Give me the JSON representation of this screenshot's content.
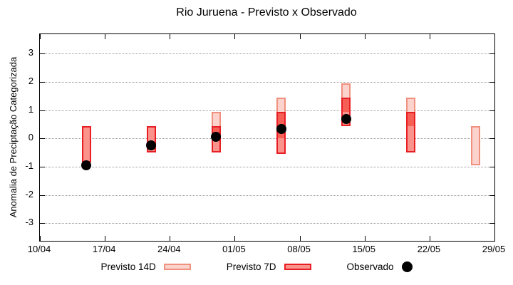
{
  "title": "Rio Juruena - Previsto x Observado",
  "y_axis": {
    "label": "Anomalia de Preciptação Categorizada",
    "ticks": [
      "3",
      "2",
      "1",
      "0",
      "-1",
      "-2",
      "-3"
    ],
    "tick_values": [
      3,
      2,
      1,
      0,
      -1,
      -2,
      -3
    ]
  },
  "x_axis": {
    "ticks": [
      "10/04",
      "17/04",
      "24/04",
      "01/05",
      "08/05",
      "15/05",
      "22/05",
      "29/05"
    ],
    "tick_days": [
      0,
      7,
      14,
      21,
      28,
      35,
      42,
      49
    ]
  },
  "legend": {
    "items": [
      {
        "label": "Previsto 14D",
        "swatch": "box-light-pink"
      },
      {
        "label": "Previsto 7D",
        "swatch": "box-red"
      },
      {
        "label": "Observado",
        "swatch": "black-dot"
      }
    ]
  },
  "colors": {
    "p14_fill": "#fbd3cc",
    "p14_border": "#f0907e",
    "p7_fill": "#fa938c",
    "p7_border": "#e81e25",
    "overlap_fill": "#f55f56",
    "observed": "#000000",
    "grid": "#999999",
    "axis": "#000000"
  },
  "chart_data": {
    "type": "bar",
    "subtype": "range-bars-with-scatter",
    "title": "Rio Juruena - Previsto x Observado",
    "xlabel": "",
    "ylabel": "Anomalia de Preciptação Categorizada",
    "ylim": [
      -3.62,
      3.69
    ],
    "x_domain_days": [
      0,
      49
    ],
    "x_tick_labels": [
      "10/04",
      "17/04",
      "24/04",
      "01/05",
      "08/05",
      "15/05",
      "22/05",
      "29/05"
    ],
    "grid": true,
    "legend_position": "bottom",
    "series": [
      {
        "name": "Previsto 14D",
        "role": "range_14d",
        "points": [
          {
            "date": "29/04",
            "day": 19,
            "low": 0.0,
            "high": 0.95
          },
          {
            "date": "06/05",
            "day": 26,
            "low": 0.0,
            "high": 1.45
          },
          {
            "date": "13/05",
            "day": 33,
            "low": 0.95,
            "high": 1.95
          },
          {
            "date": "20/05",
            "day": 40,
            "low": 0.45,
            "high": 1.45
          },
          {
            "date": "27/05",
            "day": 47,
            "low": -0.95,
            "high": 0.45
          }
        ]
      },
      {
        "name": "Previsto 7D",
        "role": "range_7d",
        "points": [
          {
            "date": "15/04",
            "day": 5,
            "low": -0.85,
            "high": 0.45
          },
          {
            "date": "22/04",
            "day": 12,
            "low": -0.5,
            "high": 0.45
          },
          {
            "date": "29/04",
            "day": 19,
            "low": -0.5,
            "high": 0.45
          },
          {
            "date": "06/05",
            "day": 26,
            "low": -0.55,
            "high": 0.95
          },
          {
            "date": "13/05",
            "day": 33,
            "low": 0.45,
            "high": 1.45
          },
          {
            "date": "20/05",
            "day": 40,
            "low": -0.5,
            "high": 0.95
          }
        ]
      },
      {
        "name": "Observado",
        "role": "observed",
        "points": [
          {
            "date": "15/04",
            "day": 5,
            "value": -0.95
          },
          {
            "date": "22/04",
            "day": 12,
            "value": -0.25
          },
          {
            "date": "29/04",
            "day": 19,
            "value": 0.05
          },
          {
            "date": "06/05",
            "day": 26,
            "value": 0.35
          },
          {
            "date": "13/05",
            "day": 33,
            "value": 0.7
          }
        ]
      }
    ]
  }
}
